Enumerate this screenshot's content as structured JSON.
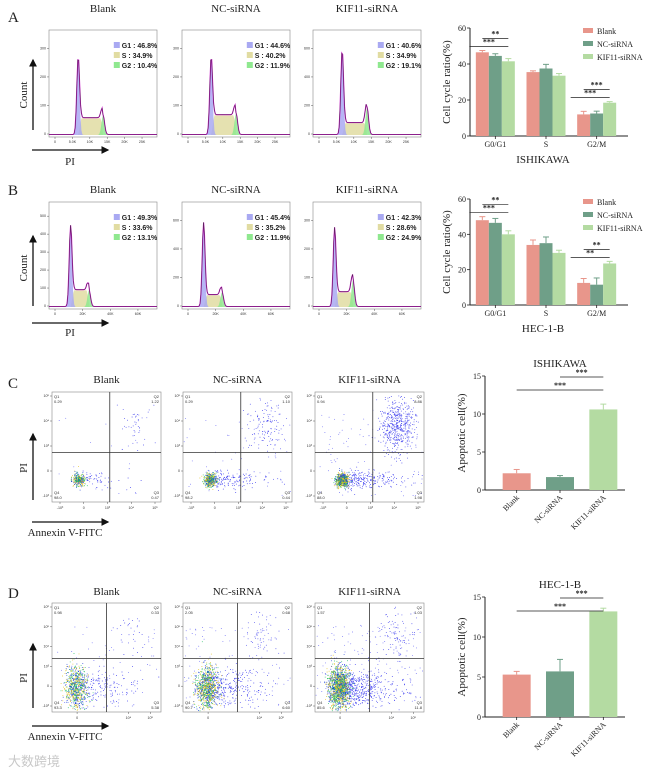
{
  "panel_labels": {
    "A": "A",
    "B": "B",
    "C": "C",
    "D": "D"
  },
  "axis_labels": {
    "count": "Count",
    "pi": "PI",
    "annexin": "Annexin V-FITC"
  },
  "watermark": "大数跨境",
  "colors": {
    "Blank": "#e8968b",
    "NC-siRNA": "#6f9f88",
    "KIF11-siRNA": "#b4dba2",
    "g1": "#a9a9f2",
    "s": "#e1dca2",
    "g2": "#8fe88f"
  },
  "cell_cycle_histograms": [
    {
      "row": "A",
      "panels": [
        {
          "title": "Blank",
          "G1": "G1 : 46.8%",
          "S": "S : 34.9%",
          "G2": "G2 : 10.4%",
          "yticks": [
            "0",
            "100",
            "200",
            "300"
          ],
          "xticks": [
            "0",
            "5.0K",
            "10K",
            "15K",
            "20K",
            "25K"
          ]
        },
        {
          "title": "NC-siRNA",
          "G1": "G1 : 44.6%",
          "S": "S : 40.2%",
          "G2": "G2 : 11.9%",
          "yticks": [
            "0",
            "100",
            "200",
            "300"
          ],
          "xticks": [
            "0",
            "5.0K",
            "10K",
            "15K",
            "20K",
            "25K"
          ]
        },
        {
          "title": "KIF11-siRNA",
          "G1": "G1 : 40.6%",
          "S": "S : 34.9%",
          "G2": "G2 : 19.1%",
          "yticks": [
            "0",
            "200",
            "400",
            "600"
          ],
          "xticks": [
            "0",
            "5.0K",
            "10K",
            "15K",
            "20K",
            "25K"
          ]
        }
      ]
    },
    {
      "row": "B",
      "panels": [
        {
          "title": "Blank",
          "G1": "G1 : 49.3%",
          "S": "S : 33.6%",
          "G2": "G2 : 13.1%",
          "yticks": [
            "0",
            "100",
            "200",
            "300",
            "400",
            "500"
          ],
          "xticks": [
            "0",
            "20K",
            "40K",
            "60K"
          ]
        },
        {
          "title": "NC-siRNA",
          "G1": "G1 : 45.4%",
          "S": "S : 35.2%",
          "G2": "G2 : 11.9%",
          "yticks": [
            "0",
            "200",
            "400",
            "600"
          ],
          "xticks": [
            "0",
            "20K",
            "40K",
            "60K"
          ]
        },
        {
          "title": "KIF11-siRNA",
          "G1": "G1 : 42.3%",
          "S": "S : 28.6%",
          "G2": "G2 : 24.9%",
          "yticks": [
            "0",
            "100",
            "200",
            "300"
          ],
          "xticks": [
            "0",
            "20K",
            "40K",
            "60K"
          ]
        }
      ]
    }
  ],
  "apoptosis_scatter": [
    {
      "row": "C",
      "yticks": [
        "10⁵",
        "10⁴",
        "10³",
        "0",
        "-10³"
      ],
      "xticks": [
        "-10³",
        "0",
        "10³",
        "10⁴",
        "10⁵"
      ],
      "panels": [
        {
          "title": "Blank",
          "Q1": [
            "Q1",
            "0.29"
          ],
          "Q2": [
            "Q2",
            "1.22"
          ],
          "Q3": [
            "Q3",
            "0.47"
          ],
          "Q4": [
            "Q4",
            "98.0"
          ]
        },
        {
          "title": "NC-siRNA",
          "Q1": [
            "Q1",
            "0.29"
          ],
          "Q2": [
            "Q2",
            "1.10"
          ],
          "Q3": [
            "Q3",
            "0.44"
          ],
          "Q4": [
            "Q4",
            "98.2"
          ]
        },
        {
          "title": "KIF11-siRNA",
          "Q1": [
            "Q1",
            "0.94"
          ],
          "Q2": [
            "Q2",
            "8.86"
          ],
          "Q3": [
            "Q3",
            "1.98"
          ],
          "Q4": [
            "Q4",
            "88.0"
          ]
        }
      ]
    },
    {
      "row": "D",
      "yticks": [
        "10⁶",
        "10⁵",
        "10⁴",
        "10³",
        "0",
        "-10³"
      ],
      "xticks": [
        "0",
        "10⁴",
        "10⁵"
      ],
      "panels": [
        {
          "title": "Blank",
          "Q1": [
            "Q1",
            "0.98"
          ],
          "Q2": [
            "Q2",
            "0.33"
          ],
          "Q3": [
            "Q3",
            "5.38"
          ],
          "Q4": [
            "Q4",
            "93.3"
          ]
        },
        {
          "title": "NC-siRNA",
          "Q1": [
            "Q1",
            "2.05"
          ],
          "Q2": [
            "Q2",
            "0.68"
          ],
          "Q3": [
            "Q3",
            "6.60"
          ],
          "Q4": [
            "Q4",
            "90.7"
          ]
        },
        {
          "title": "KIF11-siRNA",
          "Q1": [
            "Q1",
            "1.57"
          ],
          "Q2": [
            "Q2",
            "1.03"
          ],
          "Q3": [
            "Q3",
            "11.8"
          ],
          "Q4": [
            "Q4",
            "85.6"
          ]
        }
      ]
    }
  ],
  "chart_data": [
    {
      "type": "bar",
      "title": "",
      "xlabel": "ISHIKAWA",
      "ylabel": "Cell cycle ratio(%)",
      "ylim": [
        0,
        60
      ],
      "yticks": [
        "0",
        "20",
        "40",
        "60"
      ],
      "categories": [
        "G0/G1",
        "S",
        "G2/M"
      ],
      "legend": "top-right",
      "series": [
        {
          "name": "Blank",
          "values": [
            46.5,
            35.5,
            12.0
          ],
          "errors": [
            1.0,
            0.7,
            1.7
          ]
        },
        {
          "name": "NC-siRNA",
          "values": [
            44.5,
            37.5,
            12.5
          ],
          "errors": [
            1.2,
            2.3,
            1.3
          ]
        },
        {
          "name": "KIF11-siRNA",
          "values": [
            41.5,
            33.5,
            18.5
          ],
          "errors": [
            1.5,
            1.2,
            0.6
          ]
        }
      ],
      "significance": [
        {
          "category": 0,
          "from": 0,
          "to": 2,
          "label": "***"
        },
        {
          "category": 0,
          "from": 1,
          "to": 2,
          "label": "**"
        },
        {
          "category": 2,
          "from": 0,
          "to": 2,
          "label": "***"
        },
        {
          "category": 2,
          "from": 1,
          "to": 2,
          "label": "***"
        }
      ]
    },
    {
      "type": "bar",
      "title": "",
      "xlabel": "HEC-1-B",
      "ylabel": "Cell cycle ratio(%)",
      "ylim": [
        0,
        60
      ],
      "yticks": [
        "0",
        "20",
        "40",
        "60"
      ],
      "categories": [
        "G0/G1",
        "S",
        "G2/M"
      ],
      "legend": "top-right",
      "series": [
        {
          "name": "Blank",
          "values": [
            48.0,
            34.0,
            12.5
          ],
          "errors": [
            2.0,
            2.8,
            2.5
          ]
        },
        {
          "name": "NC-siRNA",
          "values": [
            46.5,
            35.0,
            11.5
          ],
          "errors": [
            2.5,
            3.5,
            3.8
          ]
        },
        {
          "name": "KIF11-siRNA",
          "values": [
            40.0,
            29.5,
            23.5
          ],
          "errors": [
            2.0,
            1.5,
            1.2
          ]
        }
      ],
      "significance": [
        {
          "category": 0,
          "from": 0,
          "to": 2,
          "label": "***"
        },
        {
          "category": 0,
          "from": 1,
          "to": 2,
          "label": "**"
        },
        {
          "category": 2,
          "from": 0,
          "to": 2,
          "label": "**"
        },
        {
          "category": 2,
          "from": 1,
          "to": 2,
          "label": "**"
        }
      ]
    },
    {
      "type": "bar",
      "title": "ISHIKAWA",
      "xlabel": "",
      "ylabel": "Apoptotic cell(%)",
      "ylim": [
        0,
        15
      ],
      "yticks": [
        "0",
        "5",
        "10",
        "15"
      ],
      "categories": [
        "Blank",
        "NC-siRNA",
        "KIF11-siRNA"
      ],
      "values": [
        2.2,
        1.7,
        10.6
      ],
      "errors": [
        0.5,
        0.2,
        0.7
      ],
      "significance": [
        {
          "from": 0,
          "to": 2,
          "label": "***"
        },
        {
          "from": 1,
          "to": 2,
          "label": "***"
        }
      ]
    },
    {
      "type": "bar",
      "title": "HEC-1-B",
      "xlabel": "",
      "ylabel": "Apoptotic cell(%)",
      "ylim": [
        0,
        15
      ],
      "yticks": [
        "0",
        "5",
        "10",
        "15"
      ],
      "categories": [
        "Blank",
        "NC-siRNA",
        "KIF11-siRNA"
      ],
      "values": [
        5.3,
        5.7,
        13.2
      ],
      "errors": [
        0.4,
        1.5,
        0.4
      ],
      "significance": [
        {
          "from": 0,
          "to": 2,
          "label": "***"
        },
        {
          "from": 1,
          "to": 2,
          "label": "***"
        }
      ]
    }
  ]
}
